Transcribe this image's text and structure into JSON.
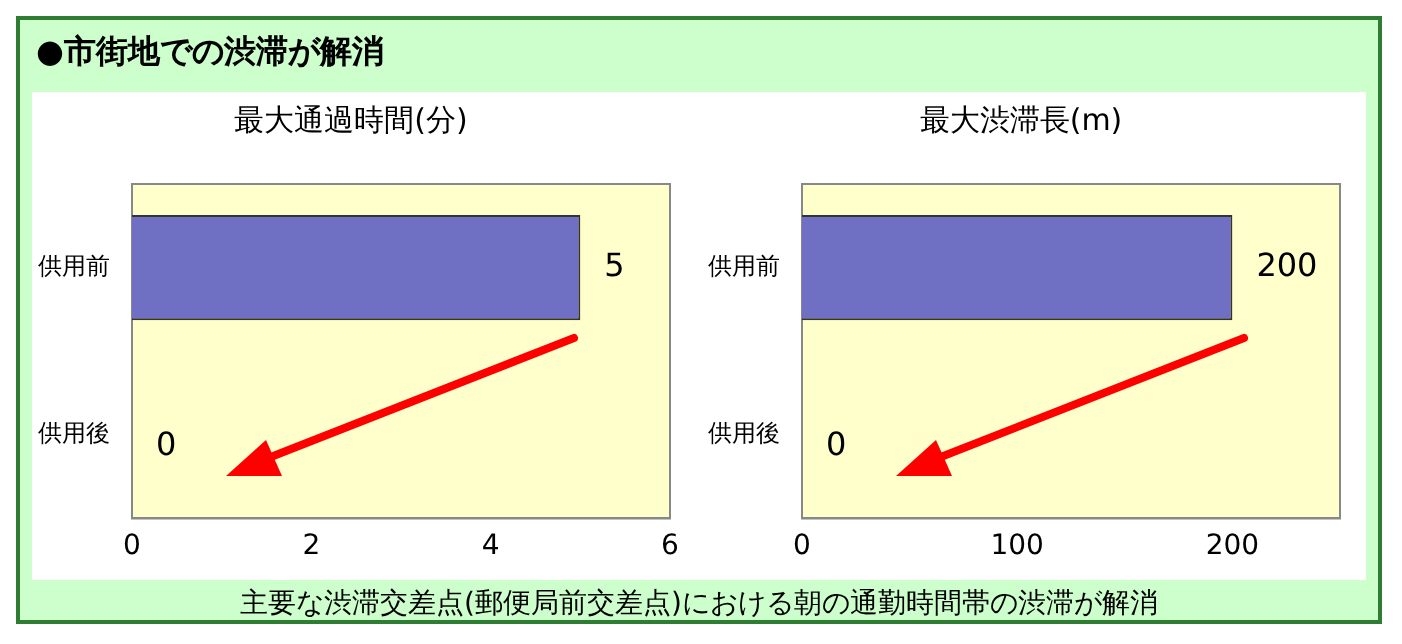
{
  "chart_data": [
    {
      "type": "other",
      "title": "●市街地での渋滞が解消"
    },
    {
      "type": "bar",
      "orientation": "horizontal",
      "title": "最大通過時間(分)",
      "categories": [
        "供用前",
        "供用後"
      ],
      "values": [
        5,
        0
      ],
      "color": "#6f6fc4",
      "xlim": [
        0,
        6
      ],
      "xticks": [
        0,
        2,
        4,
        6
      ],
      "data_labels": true
    },
    {
      "type": "bar",
      "orientation": "horizontal",
      "title": "最大渋滞長(m)",
      "categories": [
        "供用前",
        "供用後"
      ],
      "values": [
        200,
        0
      ],
      "color": "#6f6fc4",
      "xlim": [
        0,
        250
      ],
      "xticks": [
        0,
        100,
        200
      ],
      "data_labels": true
    },
    {
      "type": "other",
      "annotations": [
        "主要な渋滞交差点(郵便局前交差点)における朝の通勤時間帯の渋滞が解消"
      ]
    }
  ]
}
